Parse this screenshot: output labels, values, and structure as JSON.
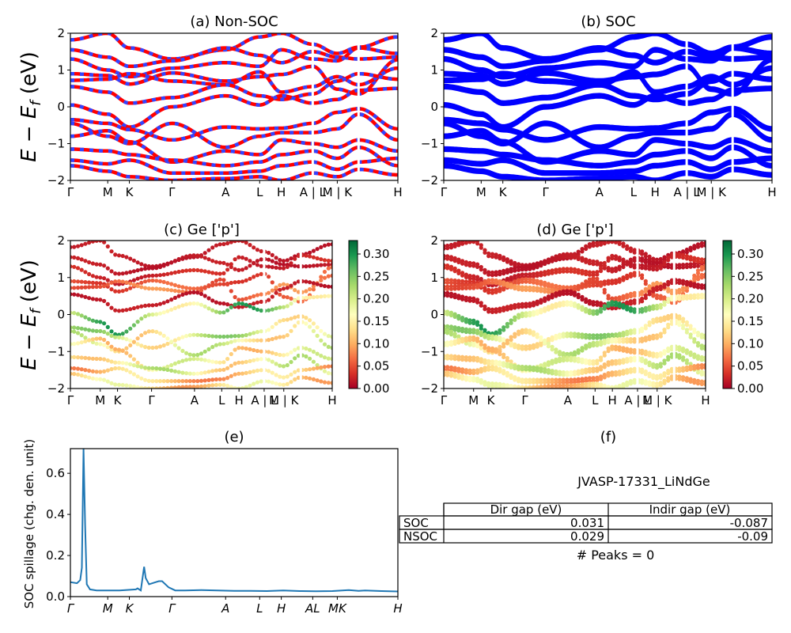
{
  "figure": {
    "ylabel_main": "E − E",
    "ylabel_sub": "f",
    "ylabel_unit": " (eV)"
  },
  "colors": {
    "nonsoc_a": "#ff0000",
    "nonsoc_b": "#3344ff",
    "soc": "#0000ff",
    "spillage": "#1f77b4",
    "cmap": [
      "#a50026",
      "#d73027",
      "#f46d43",
      "#fdae61",
      "#fee08b",
      "#ffffbf",
      "#d9ef8b",
      "#a6d96a",
      "#66bd63",
      "#1a9850",
      "#006837"
    ]
  },
  "chart_data": [
    {
      "id": "a",
      "type": "line",
      "title": "(a) Non-SOC",
      "ylim": [
        -2,
        2
      ],
      "yticks": [
        "2",
        "1",
        "0",
        "−1",
        "−2"
      ],
      "xticks": [
        "Γ",
        "M",
        "K",
        "Γ",
        "A",
        "L",
        "H",
        "A | L",
        "M | K",
        "H"
      ],
      "kpath": [
        0,
        0.114,
        0.18,
        0.31,
        0.474,
        0.578,
        0.644,
        0.74,
        0.815,
        0.88,
        1.0
      ],
      "series": [
        {
          "values": [
            1.82,
            2.0,
            1.6,
            1.3,
            1.55,
            1.9,
            2.0,
            1.7,
            1.45,
            1.62,
            1.9
          ]
        },
        {
          "values": [
            1.55,
            1.35,
            1.1,
            1.25,
            1.6,
            1.4,
            1.2,
            1.5,
            1.35,
            1.3,
            1.35
          ]
        },
        {
          "values": [
            1.3,
            1.0,
            0.82,
            1.05,
            1.2,
            1.1,
            1.55,
            1.3,
            1.25,
            1.6,
            1.45
          ]
        },
        {
          "values": [
            0.9,
            0.85,
            0.62,
            0.92,
            0.7,
            0.82,
            0.88,
            1.1,
            0.48,
            0.35,
            1.28
          ]
        },
        {
          "values": [
            0.72,
            0.75,
            0.9,
            0.7,
            0.6,
            0.95,
            0.4,
            0.55,
            0.82,
            0.6,
            1.05
          ]
        },
        {
          "values": [
            0.55,
            0.4,
            0.1,
            0.25,
            0.6,
            0.3,
            0.2,
            0.35,
            0.7,
            0.9,
            0.75
          ]
        },
        {
          "values": [
            0.05,
            -0.2,
            -0.55,
            0.0,
            0.3,
            0.05,
            0.3,
            0.1,
            0.2,
            0.45,
            0.5
          ]
        },
        {
          "values": [
            -0.35,
            -0.45,
            -0.62,
            -0.9,
            -0.55,
            -0.6,
            -0.58,
            -0.45,
            -0.15,
            -0.05,
            -0.6
          ]
        },
        {
          "values": [
            -0.45,
            -0.8,
            -1.0,
            -0.45,
            -1.1,
            -0.8,
            -0.7,
            -0.7,
            -0.6,
            -0.2,
            -0.9
          ]
        },
        {
          "values": [
            -0.8,
            -0.65,
            -0.95,
            -1.5,
            -1.2,
            -1.3,
            -0.9,
            -1.0,
            -1.1,
            -0.9,
            -1.2
          ]
        },
        {
          "values": [
            -1.15,
            -1.2,
            -1.3,
            -1.45,
            -1.6,
            -1.5,
            -1.3,
            -1.2,
            -1.4,
            -1.1,
            -1.6
          ]
        },
        {
          "values": [
            -1.45,
            -1.55,
            -1.45,
            -1.8,
            -1.8,
            -1.75,
            -1.6,
            -1.5,
            -1.7,
            -1.5,
            -1.4
          ]
        },
        {
          "values": [
            -1.6,
            -1.75,
            -1.9,
            -2.0,
            -1.95,
            -1.9,
            -2.0,
            -1.8,
            -1.9,
            -1.7,
            -1.85
          ]
        }
      ]
    },
    {
      "id": "b",
      "type": "line",
      "title": "(b) SOC",
      "ylim": [
        -2,
        2
      ],
      "yticks": [
        "2",
        "1",
        "0",
        "−1",
        "−2"
      ],
      "xticks": [
        "Γ",
        "M",
        "K",
        "Γ",
        "A",
        "L",
        "H",
        "A | L",
        "M | K",
        "H"
      ]
    },
    {
      "id": "c",
      "type": "scatter",
      "title": "(c)  Ge ['p']",
      "ylim": [
        -2,
        2
      ],
      "yticks": [
        "2",
        "1",
        "0",
        "−1",
        "−2"
      ],
      "xticks": [
        "Γ",
        "M",
        "K",
        "Γ",
        "A",
        "L",
        "H",
        "A | L",
        "M | K",
        "H"
      ],
      "colorbar": {
        "range": [
          0,
          0.33
        ],
        "ticks": [
          "0.00",
          "0.05",
          "0.10",
          "0.15",
          "0.20",
          "0.25",
          "0.30"
        ]
      },
      "band_weights": [
        0.02,
        0.02,
        0.03,
        0.06,
        0.08,
        0.02,
        0.26,
        0.22,
        0.2,
        0.18,
        0.2,
        0.13,
        0.16
      ]
    },
    {
      "id": "d",
      "type": "scatter",
      "title": "(d) Ge ['p']",
      "ylim": [
        -2,
        2
      ],
      "yticks": [
        "2",
        "1",
        "0",
        "−1",
        "−2"
      ],
      "xticks": [
        "Γ",
        "M",
        "K",
        "Γ",
        "A",
        "L",
        "H",
        "A | L",
        "M | K",
        "H"
      ],
      "colorbar": {
        "range": [
          0,
          0.33
        ],
        "ticks": [
          "0.00",
          "0.05",
          "0.10",
          "0.15",
          "0.20",
          "0.25",
          "0.30"
        ]
      }
    },
    {
      "id": "e",
      "type": "line",
      "title": "(e)",
      "ylabel": "SOC spillage (chg. den. unit)",
      "ylim": [
        0,
        0.72
      ],
      "yticks": [
        "0.6",
        "0.4",
        "0.2",
        "0.0"
      ],
      "xticks": [
        "Γ",
        "M",
        "K",
        "Γ",
        "A",
        "L",
        "H",
        "AL",
        "MK",
        "H"
      ],
      "x": [
        0,
        0.02,
        0.03,
        0.035,
        0.04,
        0.045,
        0.05,
        0.06,
        0.08,
        0.12,
        0.15,
        0.2,
        0.205,
        0.21,
        0.215,
        0.225,
        0.23,
        0.24,
        0.26,
        0.27,
        0.28,
        0.3,
        0.32,
        0.35,
        0.4,
        0.45,
        0.5,
        0.55,
        0.6,
        0.65,
        0.7,
        0.75,
        0.8,
        0.85,
        0.88,
        0.9,
        0.95,
        1.0
      ],
      "values": [
        0.07,
        0.065,
        0.08,
        0.14,
        0.72,
        0.35,
        0.06,
        0.035,
        0.03,
        0.03,
        0.03,
        0.035,
        0.04,
        0.035,
        0.03,
        0.145,
        0.09,
        0.06,
        0.07,
        0.075,
        0.075,
        0.045,
        0.03,
        0.03,
        0.032,
        0.03,
        0.028,
        0.028,
        0.027,
        0.03,
        0.027,
        0.026,
        0.027,
        0.032,
        0.028,
        0.03,
        0.027,
        0.025
      ]
    },
    {
      "id": "f",
      "type": "table",
      "title": "(f)",
      "subtitle": "JVASP-17331_LiNdGe",
      "columns": [
        "Dir gap (eV)",
        "Indir gap (eV)"
      ],
      "rows": [
        {
          "label": "SOC",
          "cells": [
            "0.031",
            "-0.087"
          ]
        },
        {
          "label": "NSOC",
          "cells": [
            "0.029",
            "-0.09"
          ]
        }
      ],
      "footer": "# Peaks = 0"
    }
  ]
}
